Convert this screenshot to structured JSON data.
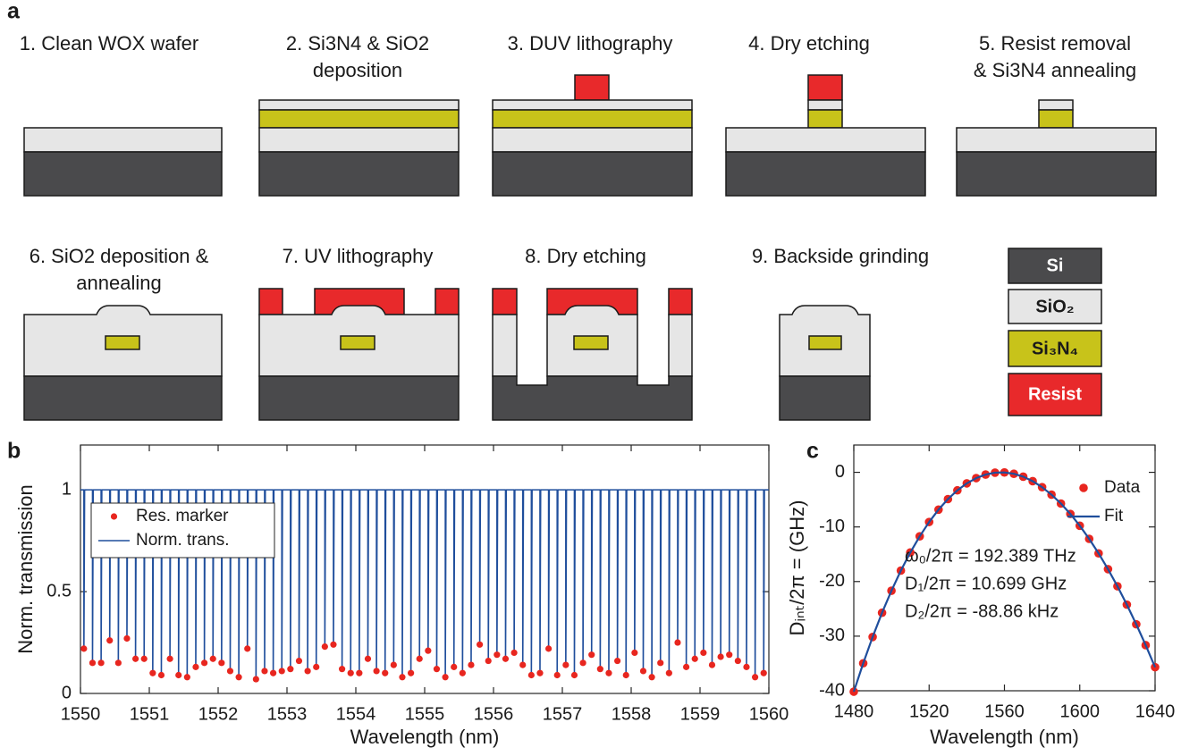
{
  "diagram": {
    "label": "a",
    "steps": [
      {
        "lines": [
          "1. Clean WOX wafer"
        ]
      },
      {
        "lines": [
          "2. Si3N4 & SiO2",
          "deposition"
        ]
      },
      {
        "lines": [
          "3. DUV lithography"
        ]
      },
      {
        "lines": [
          "4. Dry etching"
        ]
      },
      {
        "lines": [
          "5. Resist removal",
          "& Si3N4 annealing"
        ]
      },
      {
        "lines": [
          "6. SiO2 deposition &",
          "annealing"
        ]
      },
      {
        "lines": [
          "7. UV lithography"
        ]
      },
      {
        "lines": [
          "8. Dry etching"
        ]
      },
      {
        "lines": [
          "9. Backside grinding"
        ]
      }
    ],
    "legend": [
      "Si",
      "SiO₂",
      "Si₃N₄",
      "Resist"
    ]
  },
  "chart_data": [
    {
      "type": "line",
      "label": "b",
      "xlabel": "Wavelength (nm)",
      "ylabel": "Norm. transmission",
      "xlim": [
        1550,
        1560
      ],
      "ylim": [
        0,
        1.22
      ],
      "xticks": [
        1550,
        1551,
        1552,
        1553,
        1554,
        1555,
        1556,
        1557,
        1558,
        1559,
        1560
      ],
      "yticks": [
        0,
        0.5,
        1
      ],
      "legend": "upper left",
      "legend_box": true,
      "series": [
        {
          "name": "Res. marker",
          "type": "scatter",
          "color": "#e8261f",
          "x": [
            1550.05,
            1550.175,
            1550.3,
            1550.425,
            1550.55,
            1550.675,
            1550.8,
            1550.925,
            1551.05,
            1551.175,
            1551.3,
            1551.425,
            1551.55,
            1551.675,
            1551.8,
            1551.925,
            1552.05,
            1552.175,
            1552.3,
            1552.425,
            1552.55,
            1552.675,
            1552.8,
            1552.925,
            1553.05,
            1553.175,
            1553.3,
            1553.425,
            1553.55,
            1553.675,
            1553.8,
            1553.925,
            1554.05,
            1554.175,
            1554.3,
            1554.425,
            1554.55,
            1554.675,
            1554.8,
            1554.925,
            1555.05,
            1555.175,
            1555.3,
            1555.425,
            1555.55,
            1555.675,
            1555.8,
            1555.925,
            1556.05,
            1556.175,
            1556.3,
            1556.425,
            1556.55,
            1556.675,
            1556.8,
            1556.925,
            1557.05,
            1557.175,
            1557.3,
            1557.425,
            1557.55,
            1557.675,
            1557.8,
            1557.925,
            1558.05,
            1558.175,
            1558.3,
            1558.425,
            1558.55,
            1558.675,
            1558.8,
            1558.925,
            1559.05,
            1559.175,
            1559.3,
            1559.425,
            1559.55,
            1559.675,
            1559.8,
            1559.925
          ],
          "values": [
            0.22,
            0.15,
            0.15,
            0.26,
            0.15,
            0.27,
            0.17,
            0.17,
            0.1,
            0.09,
            0.17,
            0.09,
            0.08,
            0.13,
            0.15,
            0.17,
            0.15,
            0.11,
            0.08,
            0.22,
            0.07,
            0.11,
            0.1,
            0.11,
            0.12,
            0.16,
            0.11,
            0.13,
            0.23,
            0.24,
            0.12,
            0.1,
            0.1,
            0.17,
            0.11,
            0.1,
            0.14,
            0.08,
            0.1,
            0.17,
            0.21,
            0.12,
            0.08,
            0.13,
            0.1,
            0.14,
            0.24,
            0.16,
            0.19,
            0.17,
            0.2,
            0.14,
            0.09,
            0.1,
            0.22,
            0.09,
            0.14,
            0.09,
            0.15,
            0.19,
            0.12,
            0.1,
            0.16,
            0.09,
            0.2,
            0.11,
            0.08,
            0.15,
            0.1,
            0.25,
            0.13,
            0.17,
            0.2,
            0.14,
            0.18,
            0.19,
            0.16,
            0.13,
            0.08,
            0.1
          ]
        },
        {
          "name": "Norm. trans.",
          "type": "line",
          "color": "#1f4e9c",
          "x": [
            1550,
            1550.05,
            1550.05,
            1550.06,
            1550.175,
            1550.175,
            1550.185,
            1550.3,
            1550.3,
            1550.31,
            1550.425,
            1550.425,
            1550.435,
            1550.55,
            1550.55,
            1550.56,
            1550.675,
            1550.675,
            1550.685,
            1550.8,
            1550.8,
            1550.81,
            1550.925,
            1550.925,
            1550.935,
            1551.05,
            1551.05,
            1551.06,
            1551.175,
            1551.175,
            1551.185,
            1551.3,
            1551.3,
            1551.31,
            1551.425,
            1551.425,
            1551.435,
            1551.55,
            1551.55,
            1551.56,
            1551.675,
            1551.675,
            1551.685,
            1551.8,
            1551.8,
            1551.81,
            1551.925,
            1551.925,
            1551.935,
            1552.05,
            1552.05,
            1552.06,
            1552.175,
            1552.175,
            1552.185,
            1552.3,
            1552.3,
            1552.31,
            1552.425,
            1552.425,
            1552.435,
            1552.55,
            1552.55,
            1552.56,
            1552.675,
            1552.675,
            1552.685,
            1552.8,
            1552.8,
            1552.81,
            1552.925,
            1552.925,
            1552.935,
            1553.05,
            1553.05,
            1553.06,
            1553.175,
            1553.175,
            1553.185,
            1553.3,
            1553.3,
            1553.31,
            1553.425,
            1553.425,
            1553.435,
            1553.55,
            1553.55,
            1553.56,
            1553.675,
            1553.675,
            1553.685,
            1553.8,
            1553.8,
            1553.81,
            1553.925,
            1553.925,
            1553.935,
            1554.05,
            1554.05,
            1554.06,
            1554.175,
            1554.175,
            1554.185,
            1554.3,
            1554.3,
            1554.31,
            1554.425,
            1554.425,
            1554.435,
            1554.55,
            1554.55,
            1554.56,
            1554.675,
            1554.675,
            1554.685,
            1554.8,
            1554.8,
            1554.81,
            1554.925,
            1554.925,
            1554.935,
            1555.05,
            1555.05,
            1555.06,
            1555.175,
            1555.175,
            1555.185,
            1555.3,
            1555.3,
            1555.31,
            1555.425,
            1555.425,
            1555.435,
            1555.55,
            1555.55,
            1555.56,
            1555.675,
            1555.675,
            1555.685,
            1555.8,
            1555.8,
            1555.81,
            1555.925,
            1555.925,
            1555.935,
            1556.05,
            1556.05,
            1556.06,
            1556.175,
            1556.175,
            1556.185,
            1556.3,
            1556.3,
            1556.31,
            1556.425,
            1556.425,
            1556.435,
            1556.55,
            1556.55,
            1556.56,
            1556.675,
            1556.675,
            1556.685,
            1556.8,
            1556.8,
            1556.81,
            1556.925,
            1556.925,
            1556.935,
            1557.05,
            1557.05,
            1557.06,
            1557.175,
            1557.175,
            1557.185,
            1557.3,
            1557.3,
            1557.31,
            1557.425,
            1557.425,
            1557.435,
            1557.55,
            1557.55,
            1557.56,
            1557.675,
            1557.675,
            1557.685,
            1557.8,
            1557.8,
            1557.81,
            1557.925,
            1557.925,
            1557.935,
            1558.05,
            1558.05,
            1558.06,
            1558.175,
            1558.175,
            1558.185,
            1558.3,
            1558.3,
            1558.31,
            1558.425,
            1558.425,
            1558.435,
            1558.55,
            1558.55,
            1558.56,
            1558.675,
            1558.675,
            1558.685,
            1558.8,
            1558.8,
            1558.81,
            1558.925,
            1558.925,
            1558.935,
            1559.05,
            1559.05,
            1559.06,
            1559.175,
            1559.175,
            1559.185,
            1559.3,
            1559.3,
            1559.31,
            1559.425,
            1559.425,
            1559.435,
            1559.55,
            1559.55,
            1559.56,
            1559.675,
            1559.675,
            1559.685,
            1559.8,
            1559.8,
            1559.81,
            1559.925,
            1559.925,
            1559.935,
            1560
          ],
          "values": [
            1,
            1,
            0.22,
            1,
            1,
            0.15,
            1,
            1,
            0.15,
            1,
            1,
            0.26,
            1,
            1,
            0.15,
            1,
            1,
            0.27,
            1,
            1,
            0.17,
            1,
            1,
            0.17,
            1,
            1,
            0.1,
            1,
            1,
            0.09,
            1,
            1,
            0.17,
            1,
            1,
            0.09,
            1,
            1,
            0.08,
            1,
            1,
            0.13,
            1,
            1,
            0.15,
            1,
            1,
            0.17,
            1,
            1,
            0.15,
            1,
            1,
            0.11,
            1,
            1,
            0.08,
            1,
            1,
            0.22,
            1,
            1,
            0.07,
            1,
            1,
            0.11,
            1,
            1,
            0.1,
            1,
            1,
            0.11,
            1,
            1,
            0.12,
            1,
            1,
            0.16,
            1,
            1,
            0.11,
            1,
            1,
            0.13,
            1,
            1,
            0.23,
            1,
            1,
            0.24,
            1,
            1,
            0.12,
            1,
            1,
            0.1,
            1,
            1,
            0.1,
            1,
            1,
            0.17,
            1,
            1,
            0.11,
            1,
            1,
            0.1,
            1,
            1,
            0.14,
            1,
            1,
            0.08,
            1,
            1,
            0.1,
            1,
            1,
            0.17,
            1,
            1,
            0.21,
            1,
            1,
            0.12,
            1,
            1,
            0.08,
            1,
            1,
            0.13,
            1,
            1,
            0.1,
            1,
            1,
            0.14,
            1,
            1,
            0.24,
            1,
            1,
            0.16,
            1,
            1,
            0.19,
            1,
            1,
            0.17,
            1,
            1,
            0.2,
            1,
            1,
            0.14,
            1,
            1,
            0.09,
            1,
            1,
            0.1,
            1,
            1,
            0.22,
            1,
            1,
            0.09,
            1,
            1,
            0.14,
            1,
            1,
            0.09,
            1,
            1,
            0.15,
            1,
            1,
            0.19,
            1,
            1,
            0.12,
            1,
            1,
            0.1,
            1,
            1,
            0.16,
            1,
            1,
            0.09,
            1,
            1,
            0.2,
            1,
            1,
            0.11,
            1,
            1,
            0.08,
            1,
            1,
            0.15,
            1,
            1,
            0.1,
            1,
            1,
            0.25,
            1,
            1,
            0.13,
            1,
            1,
            0.17,
            1,
            1,
            0.2,
            1,
            1,
            0.14,
            1,
            1,
            0.18,
            1,
            1,
            0.19,
            1,
            1,
            0.16,
            1,
            1,
            0.13,
            1,
            1,
            0.08,
            1,
            1,
            0.1,
            1,
            1
          ]
        }
      ]
    },
    {
      "type": "line",
      "label": "c",
      "xlabel": "Wavelength (nm)",
      "ylabel": "Dᵢₙₜ/2π = (GHz)",
      "xlim": [
        1480,
        1640
      ],
      "ylim": [
        -40,
        5
      ],
      "xticks": [
        1480,
        1520,
        1560,
        1600,
        1640
      ],
      "yticks": [
        -40,
        -30,
        -20,
        -10,
        0
      ],
      "legend": "upper right",
      "legend_box": false,
      "annotations": [
        "ω₀/2π = 192.389 THz",
        "D₁/2π = 10.699 GHz",
        "D₂/2π = -88.86 kHz"
      ],
      "x": [
        1480,
        1485,
        1490,
        1495,
        1500,
        1505,
        1510,
        1515,
        1520,
        1525,
        1530,
        1535,
        1540,
        1545,
        1550,
        1555,
        1560,
        1565,
        1570,
        1575,
        1580,
        1585,
        1590,
        1595,
        1600,
        1605,
        1610,
        1615,
        1620,
        1625,
        1630,
        1635,
        1640
      ],
      "series": [
        {
          "name": "Data",
          "type": "scatter",
          "color": "#e8261f",
          "values": [
            -40.17,
            -34.97,
            -30.15,
            -25.72,
            -21.68,
            -17.99,
            -14.68,
            -11.72,
            -9.1,
            -6.83,
            -4.9,
            -3.3,
            -2.02,
            -1.06,
            -0.41,
            -0.06,
            -0.02,
            -0.27,
            -0.8,
            -1.62,
            -2.72,
            -4.09,
            -5.72,
            -7.62,
            -9.78,
            -12.18,
            -14.84,
            -17.73,
            -20.86,
            -24.23,
            -27.83,
            -31.65,
            -35.69
          ]
        },
        {
          "name": "Fit",
          "type": "line",
          "color": "#1f4e9c",
          "values": [
            -40.17,
            -34.97,
            -30.15,
            -25.72,
            -21.68,
            -17.99,
            -14.68,
            -11.72,
            -9.1,
            -6.83,
            -4.9,
            -3.3,
            -2.02,
            -1.06,
            -0.41,
            -0.06,
            -0.02,
            -0.27,
            -0.8,
            -1.62,
            -2.72,
            -4.09,
            -5.72,
            -7.62,
            -9.78,
            -12.18,
            -14.84,
            -17.73,
            -20.86,
            -24.23,
            -27.83,
            -31.65,
            -35.69
          ]
        }
      ]
    }
  ]
}
